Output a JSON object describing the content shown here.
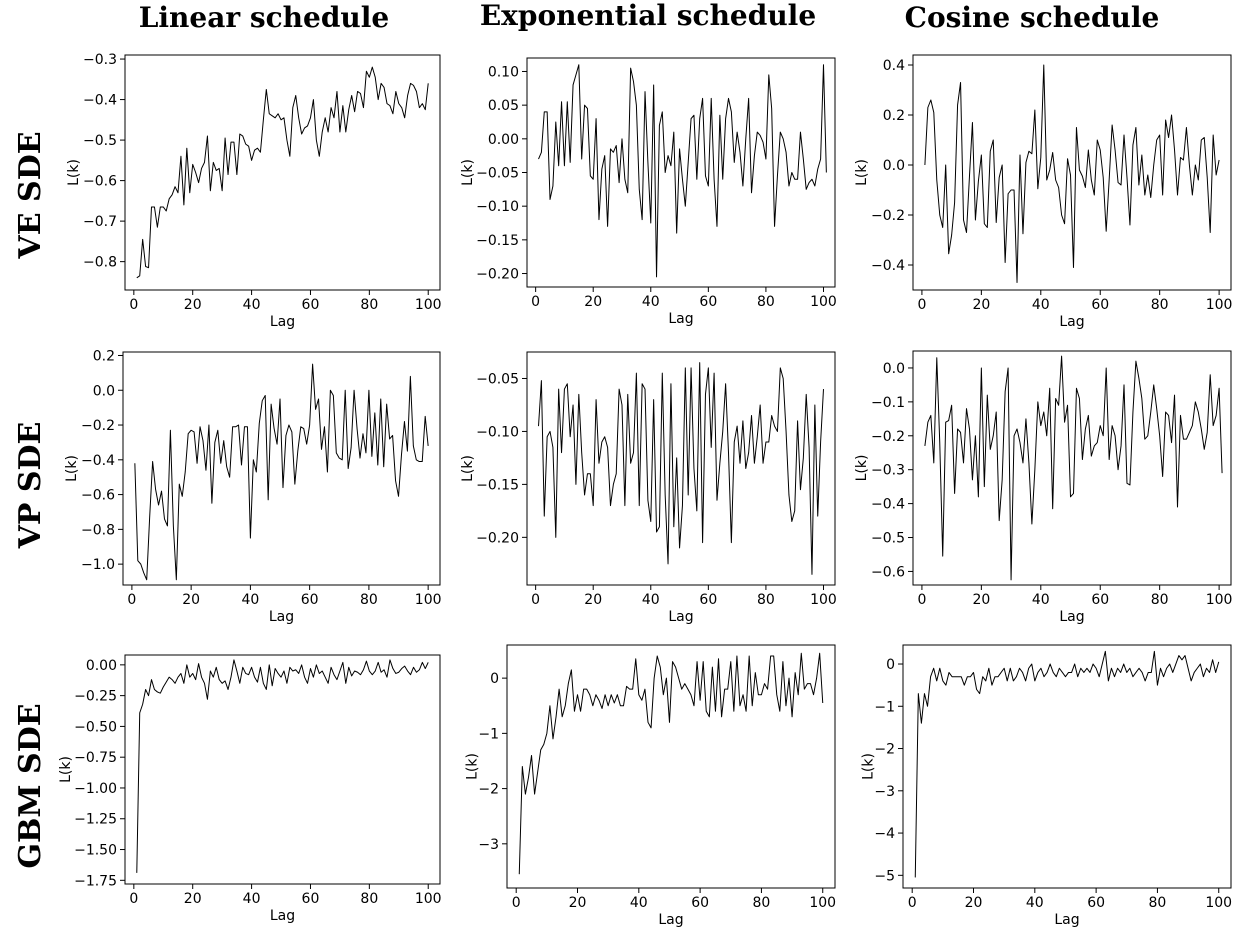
{
  "column_titles": [
    "Linear schedule",
    "Exponential schedule",
    "Cosine schedule"
  ],
  "row_titles": [
    "VE SDE",
    "VP SDE",
    "GBM SDE"
  ],
  "chart_data": [
    {
      "type": "line",
      "row": 0,
      "col": 0,
      "xlabel": "Lag",
      "ylabel": "L(k)",
      "xlim": [
        -3,
        104
      ],
      "ylim": [
        -0.87,
        -0.29
      ],
      "xticks": [
        0,
        20,
        40,
        60,
        80,
        100
      ],
      "yticks": [
        -0.8,
        -0.7,
        -0.6,
        -0.5,
        -0.4,
        -0.3
      ],
      "x_start": 1,
      "values": [
        -0.84,
        -0.835,
        -0.745,
        -0.812,
        -0.815,
        -0.665,
        -0.665,
        -0.715,
        -0.665,
        -0.665,
        -0.675,
        -0.645,
        -0.635,
        -0.615,
        -0.63,
        -0.54,
        -0.66,
        -0.52,
        -0.63,
        -0.56,
        -0.58,
        -0.605,
        -0.57,
        -0.555,
        -0.49,
        -0.625,
        -0.555,
        -0.575,
        -0.57,
        -0.625,
        -0.495,
        -0.585,
        -0.505,
        -0.505,
        -0.585,
        -0.485,
        -0.49,
        -0.51,
        -0.515,
        -0.55,
        -0.525,
        -0.52,
        -0.53,
        -0.45,
        -0.375,
        -0.435,
        -0.44,
        -0.445,
        -0.435,
        -0.45,
        -0.445,
        -0.5,
        -0.54,
        -0.42,
        -0.39,
        -0.445,
        -0.485,
        -0.47,
        -0.465,
        -0.445,
        -0.4,
        -0.5,
        -0.54,
        -0.48,
        -0.445,
        -0.48,
        -0.42,
        -0.445,
        -0.38,
        -0.48,
        -0.415,
        -0.48,
        -0.425,
        -0.39,
        -0.43,
        -0.38,
        -0.385,
        -0.42,
        -0.33,
        -0.345,
        -0.32,
        -0.345,
        -0.4,
        -0.36,
        -0.37,
        -0.41,
        -0.415,
        -0.435,
        -0.38,
        -0.41,
        -0.42,
        -0.445,
        -0.39,
        -0.36,
        -0.365,
        -0.38,
        -0.42,
        -0.41,
        -0.425,
        -0.36
      ]
    },
    {
      "type": "line",
      "row": 0,
      "col": 1,
      "xlabel": "Lag",
      "ylabel": "L(k)",
      "xlim": [
        -3,
        104
      ],
      "ylim": [
        -0.22,
        0.12
      ],
      "xticks": [
        0,
        20,
        40,
        60,
        80,
        100
      ],
      "yticks": [
        -0.2,
        -0.15,
        -0.1,
        -0.05,
        0.0,
        0.05,
        0.1
      ],
      "tick_labels": [
        "−0.20",
        "−0.15",
        "−0.10",
        "−0.05",
        "0.00",
        "0.05",
        "0.10"
      ],
      "x_start": 1,
      "values": [
        -0.03,
        -0.02,
        0.04,
        0.04,
        -0.09,
        -0.07,
        0.025,
        -0.04,
        0.055,
        -0.04,
        0.055,
        -0.035,
        0.08,
        0.095,
        0.11,
        -0.03,
        0.05,
        0.045,
        -0.055,
        -0.06,
        0.03,
        -0.12,
        -0.045,
        -0.025,
        -0.13,
        -0.015,
        -0.02,
        -0.01,
        -0.065,
        0.0,
        -0.06,
        -0.08,
        0.105,
        0.085,
        0.05,
        -0.075,
        -0.12,
        0.07,
        -0.035,
        -0.125,
        0.08,
        -0.205,
        0.02,
        0.04,
        -0.05,
        -0.025,
        -0.04,
        0.01,
        -0.14,
        -0.015,
        -0.06,
        -0.1,
        -0.035,
        0.03,
        0.035,
        -0.06,
        0.03,
        0.06,
        -0.055,
        -0.07,
        0.06,
        -0.06,
        -0.13,
        0.035,
        -0.06,
        0.03,
        0.06,
        0.04,
        -0.035,
        0.01,
        -0.02,
        -0.07,
        0.0,
        0.06,
        -0.08,
        -0.025,
        0.01,
        0.005,
        -0.005,
        -0.03,
        0.095,
        0.045,
        -0.13,
        -0.055,
        0.01,
        0.0,
        -0.02,
        -0.07,
        -0.05,
        -0.06,
        -0.06,
        0.01,
        -0.03,
        -0.075,
        -0.065,
        -0.06,
        -0.07,
        -0.045,
        -0.03,
        0.11,
        -0.05
      ]
    },
    {
      "type": "line",
      "row": 0,
      "col": 2,
      "xlabel": "Lag",
      "ylabel": "L(k)",
      "xlim": [
        -3,
        104
      ],
      "ylim": [
        -0.5,
        0.44
      ],
      "xticks": [
        0,
        20,
        40,
        60,
        80,
        100
      ],
      "yticks": [
        -0.4,
        -0.2,
        0.0,
        0.2,
        0.4
      ],
      "tick_labels": [
        "−0.4",
        "−0.2",
        "0.0",
        "0.2",
        "0.4"
      ],
      "x_start": 1,
      "values": [
        0.0,
        0.23,
        0.26,
        0.21,
        -0.06,
        -0.2,
        -0.25,
        0.0,
        -0.355,
        -0.28,
        -0.15,
        0.24,
        0.33,
        -0.22,
        -0.27,
        -0.045,
        0.17,
        -0.22,
        -0.065,
        0.04,
        -0.235,
        -0.25,
        0.055,
        0.1,
        -0.23,
        -0.05,
        0.0,
        -0.39,
        -0.115,
        -0.1,
        -0.1,
        -0.47,
        0.04,
        -0.275,
        0.01,
        0.055,
        0.045,
        0.22,
        -0.095,
        0.03,
        0.4,
        -0.06,
        -0.02,
        0.05,
        -0.06,
        -0.09,
        -0.2,
        -0.235,
        0.025,
        -0.04,
        -0.41,
        0.15,
        -0.02,
        -0.045,
        -0.09,
        0.06,
        -0.06,
        -0.12,
        0.1,
        0.06,
        -0.05,
        -0.265,
        -0.06,
        0.16,
        0.06,
        -0.07,
        -0.08,
        0.12,
        -0.05,
        -0.24,
        0.08,
        0.15,
        -0.08,
        0.04,
        -0.12,
        -0.04,
        -0.13,
        0.0,
        0.1,
        0.12,
        -0.12,
        0.18,
        0.11,
        0.2,
        0.06,
        -0.12,
        0.03,
        0.02,
        0.15,
        0.0,
        -0.12,
        0.0,
        -0.06,
        0.1,
        0.11,
        -0.05,
        -0.27,
        0.12,
        -0.04,
        0.02
      ]
    },
    {
      "type": "line",
      "row": 1,
      "col": 0,
      "xlabel": "Lag",
      "ylabel": "L(k)",
      "xlim": [
        -3,
        104
      ],
      "ylim": [
        -1.12,
        0.22
      ],
      "xticks": [
        0,
        20,
        40,
        60,
        80,
        100
      ],
      "yticks": [
        -1.0,
        -0.8,
        -0.6,
        -0.4,
        -0.2,
        0.0,
        0.2
      ],
      "tick_labels": [
        "−1.0",
        "−0.8",
        "−0.6",
        "−0.4",
        "−0.2",
        "0.0",
        "0.2"
      ],
      "x_start": 1,
      "values": [
        -0.42,
        -0.98,
        -1.0,
        -1.05,
        -1.09,
        -0.73,
        -0.41,
        -0.57,
        -0.66,
        -0.58,
        -0.74,
        -0.78,
        -0.23,
        -0.78,
        -1.09,
        -0.54,
        -0.61,
        -0.47,
        -0.25,
        -0.23,
        -0.24,
        -0.42,
        -0.21,
        -0.29,
        -0.46,
        -0.2,
        -0.65,
        -0.3,
        -0.23,
        -0.42,
        -0.29,
        -0.44,
        -0.5,
        -0.21,
        -0.21,
        -0.2,
        -0.43,
        -0.21,
        -0.21,
        -0.85,
        -0.4,
        -0.47,
        -0.19,
        -0.06,
        -0.03,
        -0.63,
        -0.08,
        -0.22,
        -0.31,
        -0.05,
        -0.56,
        -0.26,
        -0.2,
        -0.24,
        -0.54,
        -0.35,
        -0.21,
        -0.22,
        -0.31,
        -0.2,
        0.15,
        -0.11,
        -0.05,
        -0.34,
        -0.21,
        -0.47,
        0.0,
        -0.03,
        -0.36,
        -0.39,
        -0.4,
        0.0,
        -0.45,
        -0.33,
        0.0,
        -0.22,
        -0.39,
        -0.25,
        -0.36,
        0.0,
        -0.38,
        -0.13,
        -0.43,
        -0.05,
        -0.44,
        -0.08,
        -0.28,
        -0.26,
        -0.52,
        -0.61,
        -0.37,
        -0.18,
        -0.35,
        0.08,
        -0.32,
        -0.4,
        -0.41,
        -0.41,
        -0.15,
        -0.32
      ]
    },
    {
      "type": "line",
      "row": 1,
      "col": 1,
      "xlabel": "Lag",
      "ylabel": "L(k)",
      "xlim": [
        -3,
        104
      ],
      "ylim": [
        -0.245,
        -0.025
      ],
      "xticks": [
        0,
        20,
        40,
        60,
        80,
        100
      ],
      "yticks": [
        -0.2,
        -0.15,
        -0.1,
        -0.05
      ],
      "tick_labels": [
        "−0.20",
        "−0.15",
        "−0.10",
        "−0.05"
      ],
      "x_start": 1,
      "values": [
        -0.095,
        -0.052,
        -0.18,
        -0.105,
        -0.1,
        -0.115,
        -0.2,
        -0.06,
        -0.12,
        -0.06,
        -0.055,
        -0.105,
        -0.075,
        -0.15,
        -0.065,
        -0.12,
        -0.16,
        -0.14,
        -0.14,
        -0.17,
        -0.07,
        -0.13,
        -0.11,
        -0.105,
        -0.115,
        -0.17,
        -0.15,
        -0.14,
        -0.06,
        -0.075,
        -0.17,
        -0.065,
        -0.13,
        -0.12,
        -0.045,
        -0.17,
        -0.055,
        -0.06,
        -0.165,
        -0.185,
        -0.07,
        -0.195,
        -0.19,
        -0.045,
        -0.16,
        -0.225,
        -0.055,
        -0.19,
        -0.125,
        -0.21,
        -0.17,
        -0.04,
        -0.16,
        -0.04,
        -0.135,
        -0.175,
        -0.035,
        -0.205,
        -0.065,
        -0.04,
        -0.115,
        -0.045,
        -0.165,
        -0.13,
        -0.1,
        -0.055,
        -0.12,
        -0.205,
        -0.11,
        -0.095,
        -0.13,
        -0.09,
        -0.135,
        -0.12,
        -0.085,
        -0.13,
        -0.105,
        -0.075,
        -0.13,
        -0.11,
        -0.11,
        -0.085,
        -0.095,
        -0.1,
        -0.04,
        -0.05,
        -0.1,
        -0.16,
        -0.185,
        -0.175,
        -0.09,
        -0.155,
        -0.125,
        -0.065,
        -0.115,
        -0.235,
        -0.075,
        -0.18,
        -0.11,
        -0.06
      ]
    },
    {
      "type": "line",
      "row": 1,
      "col": 2,
      "xlabel": "Lag",
      "ylabel": "L(k)",
      "xlim": [
        -3,
        104
      ],
      "ylim": [
        -0.64,
        0.05
      ],
      "xticks": [
        0,
        20,
        40,
        60,
        80,
        100
      ],
      "yticks": [
        -0.6,
        -0.5,
        -0.4,
        -0.3,
        -0.2,
        -0.1,
        0.0
      ],
      "tick_labels": [
        "−0.6",
        "−0.5",
        "−0.4",
        "−0.3",
        "−0.2",
        "−0.1",
        "0.0"
      ],
      "x_start": 1,
      "values": [
        -0.23,
        -0.16,
        -0.14,
        -0.28,
        0.03,
        -0.22,
        -0.555,
        -0.16,
        -0.155,
        -0.11,
        -0.37,
        -0.18,
        -0.19,
        -0.28,
        -0.12,
        -0.18,
        -0.33,
        -0.2,
        -0.38,
        0.0,
        -0.35,
        -0.08,
        -0.24,
        -0.2,
        -0.13,
        -0.45,
        -0.33,
        -0.07,
        0.0,
        -0.625,
        -0.2,
        -0.18,
        -0.22,
        -0.28,
        -0.15,
        -0.28,
        -0.46,
        -0.3,
        -0.1,
        -0.17,
        -0.13,
        -0.2,
        -0.06,
        -0.415,
        -0.09,
        -0.11,
        0.035,
        -0.16,
        -0.11,
        -0.38,
        -0.37,
        -0.06,
        -0.09,
        -0.27,
        -0.18,
        -0.14,
        -0.26,
        -0.23,
        -0.22,
        -0.17,
        -0.2,
        0.0,
        -0.27,
        -0.17,
        -0.2,
        -0.3,
        -0.23,
        -0.05,
        -0.34,
        -0.345,
        -0.13,
        0.02,
        -0.03,
        -0.09,
        -0.21,
        -0.2,
        -0.13,
        -0.05,
        -0.12,
        -0.2,
        -0.32,
        -0.13,
        -0.14,
        -0.22,
        -0.08,
        -0.41,
        -0.14,
        -0.21,
        -0.21,
        -0.19,
        -0.17,
        -0.1,
        -0.13,
        -0.18,
        -0.24,
        -0.19,
        -0.02,
        -0.17,
        -0.14,
        -0.06,
        -0.31
      ]
    },
    {
      "type": "line",
      "row": 2,
      "col": 0,
      "xlabel": "Lag",
      "ylabel": "L(k)",
      "xlim": [
        -3,
        104
      ],
      "ylim": [
        -1.78,
        0.08
      ],
      "xticks": [
        0,
        20,
        40,
        60,
        80,
        100
      ],
      "yticks": [
        -1.75,
        -1.5,
        -1.25,
        -1.0,
        -0.75,
        -0.5,
        -0.25,
        0.0
      ],
      "tick_labels": [
        "−1.75",
        "−1.50",
        "−1.25",
        "−1.00",
        "−0.75",
        "−0.50",
        "−0.25",
        "0.00"
      ],
      "x_start": 1,
      "values": [
        -1.69,
        -0.39,
        -0.32,
        -0.2,
        -0.25,
        -0.12,
        -0.2,
        -0.22,
        -0.23,
        -0.18,
        -0.14,
        -0.1,
        -0.12,
        -0.15,
        -0.1,
        -0.07,
        -0.15,
        -0.0,
        -0.1,
        -0.07,
        -0.12,
        0.01,
        -0.1,
        -0.15,
        -0.28,
        -0.05,
        -0.1,
        -0.02,
        -0.12,
        -0.15,
        -0.13,
        -0.2,
        -0.1,
        0.04,
        -0.05,
        -0.15,
        -0.02,
        -0.07,
        -0.08,
        -0.02,
        -0.1,
        -0.14,
        -0.02,
        -0.15,
        -0.2,
        0.0,
        -0.17,
        -0.03,
        -0.07,
        -0.1,
        -0.05,
        -0.15,
        -0.02,
        -0.05,
        -0.04,
        -0.07,
        0.0,
        -0.1,
        -0.15,
        -0.03,
        -0.1,
        0.0,
        -0.07,
        -0.05,
        -0.1,
        -0.15,
        -0.02,
        -0.08,
        -0.12,
        -0.05,
        0.02,
        -0.15,
        -0.02,
        -0.09,
        -0.05,
        -0.06,
        -0.08,
        -0.04,
        0.03,
        -0.05,
        -0.08,
        -0.05,
        0.02,
        -0.06,
        -0.04,
        -0.1,
        0.04,
        -0.03,
        -0.07,
        -0.06,
        -0.03,
        -0.01,
        -0.05,
        -0.08,
        -0.02,
        -0.06,
        -0.04,
        0.02,
        -0.03,
        0.02
      ]
    },
    {
      "type": "line",
      "row": 2,
      "col": 1,
      "xlabel": "Lag",
      "ylabel": "L(k)",
      "xlim": [
        -3,
        104
      ],
      "ylim": [
        -3.8,
        0.6
      ],
      "xticks": [
        0,
        20,
        40,
        60,
        80,
        100
      ],
      "yticks": [
        -3,
        -2,
        -1,
        0
      ],
      "tick_labels": [
        "−3",
        "−2",
        "−1",
        "0"
      ],
      "x_start": 1,
      "values": [
        -3.55,
        -1.6,
        -2.1,
        -1.8,
        -1.4,
        -2.1,
        -1.7,
        -1.3,
        -1.2,
        -1.0,
        -0.5,
        -1.1,
        -0.7,
        -0.2,
        -0.7,
        -0.5,
        -0.1,
        0.15,
        -0.6,
        -0.3,
        -0.6,
        -0.2,
        -0.2,
        -0.3,
        -0.5,
        -0.3,
        -0.4,
        -0.55,
        -0.3,
        -0.5,
        -0.3,
        -0.45,
        -0.3,
        -0.5,
        -0.5,
        -0.15,
        -0.2,
        -0.2,
        0.35,
        -0.3,
        -0.4,
        -0.2,
        -0.8,
        -0.9,
        0.0,
        0.4,
        0.2,
        -0.3,
        0.0,
        -0.8,
        0.3,
        0.2,
        0.0,
        -0.2,
        -0.1,
        -0.2,
        -0.3,
        -0.5,
        0.3,
        -0.4,
        0.3,
        -0.6,
        -0.7,
        0.2,
        -0.6,
        0.35,
        -0.7,
        -0.2,
        -0.2,
        0.3,
        -0.6,
        0.4,
        -0.5,
        -0.3,
        -0.6,
        0.4,
        -0.5,
        0.1,
        -0.3,
        -0.3,
        -0.1,
        -0.2,
        0.4,
        0.4,
        -0.3,
        -0.6,
        0.3,
        -0.5,
        0.0,
        -0.7,
        0.1,
        -0.3,
        0.45,
        -0.2,
        -0.1,
        -0.1,
        -0.3,
        0.0,
        0.45,
        -0.45
      ]
    },
    {
      "type": "line",
      "row": 2,
      "col": 2,
      "xlabel": "Lag",
      "ylabel": "L(k)",
      "xlim": [
        -3,
        104
      ],
      "ylim": [
        -5.3,
        0.45
      ],
      "xticks": [
        0,
        20,
        40,
        60,
        80,
        100
      ],
      "yticks": [
        -5,
        -4,
        -3,
        -2,
        -1,
        0
      ],
      "tick_labels": [
        "−5",
        "−4",
        "−3",
        "−2",
        "−1",
        "0"
      ],
      "x_start": 1,
      "values": [
        -5.05,
        -0.7,
        -1.4,
        -0.7,
        -1.0,
        -0.3,
        -0.1,
        -0.4,
        -0.1,
        -0.4,
        -0.5,
        -0.2,
        -0.3,
        -0.3,
        -0.3,
        -0.3,
        -0.5,
        -0.3,
        -0.3,
        -0.2,
        -0.6,
        -0.7,
        -0.3,
        -0.4,
        -0.1,
        -0.5,
        -0.3,
        -0.3,
        -0.2,
        -0.1,
        -0.4,
        -0.1,
        -0.4,
        -0.3,
        -0.1,
        -0.2,
        -0.4,
        -0.1,
        0.0,
        -0.4,
        -0.2,
        -0.1,
        -0.3,
        -0.2,
        0.0,
        -0.2,
        -0.3,
        -0.1,
        -0.2,
        -0.3,
        -0.2,
        -0.2,
        0.0,
        -0.3,
        -0.1,
        -0.2,
        -0.1,
        -0.2,
        0.0,
        -0.1,
        -0.3,
        0.0,
        0.3,
        -0.4,
        -0.1,
        -0.3,
        -0.1,
        -0.2,
        0.0,
        -0.2,
        -0.1,
        -0.3,
        -0.2,
        -0.1,
        -0.2,
        -0.4,
        -0.2,
        -0.2,
        0.3,
        -0.5,
        -0.1,
        -0.3,
        -0.1,
        0.0,
        -0.2,
        0.0,
        0.2,
        0.1,
        0.2,
        -0.1,
        -0.4,
        -0.2,
        -0.1,
        0.0,
        -0.3,
        -0.1,
        -0.2,
        0.1,
        -0.2,
        0.05
      ]
    }
  ]
}
